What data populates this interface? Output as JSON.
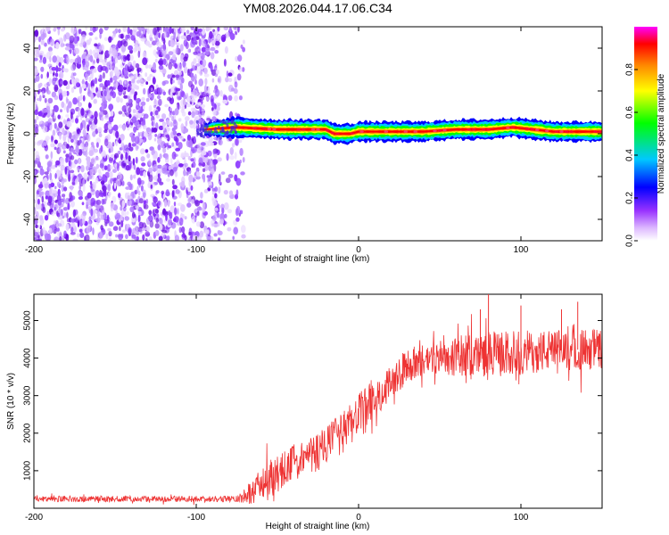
{
  "title": "YM08.2026.044.17.06.C34",
  "chart_data": [
    {
      "id": "spectrogram",
      "type": "heatmap",
      "xlabel": "Height of straight line (km)",
      "ylabel": "Frequency (Hz)",
      "xlim": [
        -200,
        150
      ],
      "ylim": [
        -50,
        50
      ],
      "xticks": [
        -200,
        -100,
        0,
        100
      ],
      "yticks": [
        -40,
        -20,
        0,
        20,
        40
      ],
      "noise_region_x": [
        -200,
        -75
      ],
      "signal_band": {
        "x_start": -95,
        "x_end": 150,
        "center_freq_points": [
          [
            -95,
            2
          ],
          [
            -75,
            3
          ],
          [
            -50,
            2
          ],
          [
            -20,
            2
          ],
          [
            -15,
            0
          ],
          [
            -5,
            0
          ],
          [
            0,
            1
          ],
          [
            40,
            1
          ],
          [
            60,
            2
          ],
          [
            80,
            2
          ],
          [
            95,
            3
          ],
          [
            120,
            1
          ],
          [
            150,
            1
          ]
        ],
        "peak_amplitude": 1.0
      },
      "colorbar": {
        "label": "Normalized spectral amplitude",
        "range": [
          0,
          1
        ],
        "ticks": [
          0.0,
          0.2,
          0.4,
          0.6,
          0.8
        ],
        "tick_labels": [
          "0.0",
          "0.2",
          "0.4",
          "0.6",
          "0.8"
        ],
        "colormap": [
          "#ffffff",
          "#cc88ff",
          "#7700dd",
          "#0000ff",
          "#00ccff",
          "#00ff00",
          "#ffff00",
          "#ff8800",
          "#ff0000",
          "#ff00ff"
        ]
      }
    },
    {
      "id": "snr",
      "type": "line",
      "xlabel": "Height of straight line (km)",
      "ylabel": "SNR (10 * v/v)",
      "xlim": [
        -200,
        150
      ],
      "ylim": [
        0,
        5700
      ],
      "xticks": [
        -200,
        -100,
        0,
        100
      ],
      "yticks": [
        1000,
        2000,
        3000,
        4000,
        5000
      ],
      "color": "#ee3333",
      "series": [
        {
          "name": "SNR",
          "envelope_x": [
            -200,
            -75,
            -65,
            -55,
            -40,
            -25,
            -10,
            0,
            10,
            20,
            30,
            45,
            60,
            80,
            100,
            120,
            150
          ],
          "envelope_y": [
            250,
            250,
            450,
            800,
            1200,
            1500,
            2000,
            2500,
            2950,
            3350,
            3800,
            4000,
            4050,
            4100,
            4150,
            4200,
            4250
          ],
          "noise_scale": [
            80,
            80,
            350,
            500,
            500,
            550,
            550,
            550,
            500,
            500,
            450,
            450,
            550,
            600,
            600,
            550,
            550
          ],
          "peak_points": [
            [
              -65,
              700
            ],
            [
              80,
              5700
            ],
            [
              75,
              5300
            ],
            [
              100,
              5400
            ],
            [
              135,
              5500
            ],
            [
              125,
              5300
            ]
          ]
        }
      ]
    }
  ]
}
